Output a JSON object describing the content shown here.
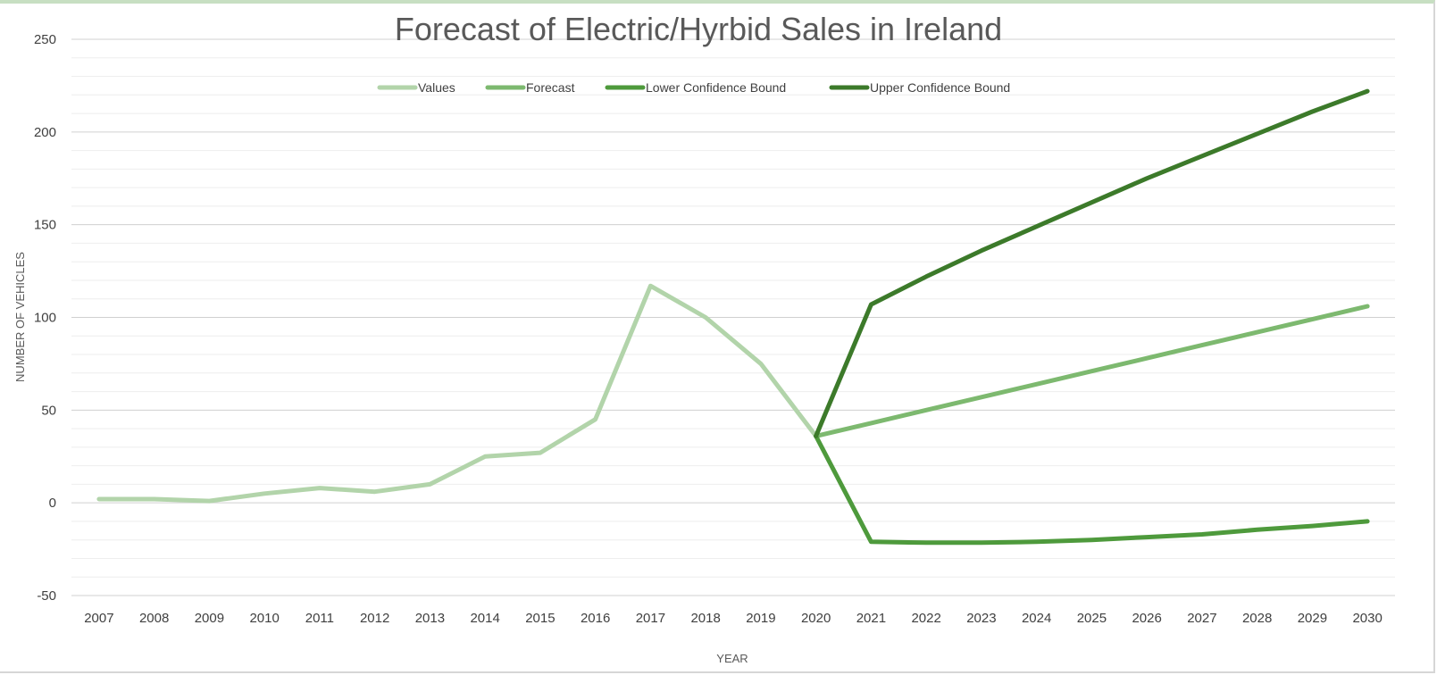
{
  "chart_data": {
    "type": "line",
    "title": "Forecast of Electric/Hyrbid Sales in Ireland",
    "xlabel": "YEAR",
    "ylabel": "NUMBER OF VEHICLES",
    "ylim": [
      -50,
      250
    ],
    "yticks": [
      -50,
      0,
      50,
      100,
      150,
      200,
      250
    ],
    "grid": true,
    "legend_position": "top",
    "x": [
      2007,
      2008,
      2009,
      2010,
      2011,
      2012,
      2013,
      2014,
      2015,
      2016,
      2017,
      2018,
      2019,
      2020,
      2021,
      2022,
      2023,
      2024,
      2025,
      2026,
      2027,
      2028,
      2029,
      2030
    ],
    "series": [
      {
        "name": "Values",
        "color": "#b2d4aa",
        "x": [
          2007,
          2008,
          2009,
          2010,
          2011,
          2012,
          2013,
          2014,
          2015,
          2016,
          2017,
          2018,
          2019,
          2020
        ],
        "values": [
          2,
          2,
          1,
          5,
          8,
          6,
          10,
          25,
          27,
          45,
          117,
          100,
          75,
          36
        ]
      },
      {
        "name": "Forecast",
        "color": "#7db96f",
        "x": [
          2020,
          2021,
          2022,
          2023,
          2024,
          2025,
          2026,
          2027,
          2028,
          2029,
          2030
        ],
        "values": [
          36,
          43,
          50,
          57,
          64,
          71,
          78,
          85,
          92,
          99,
          106
        ]
      },
      {
        "name": "Lower Confidence Bound",
        "color": "#4e9a3c",
        "x": [
          2020,
          2021,
          2022,
          2023,
          2024,
          2025,
          2026,
          2027,
          2028,
          2029,
          2030
        ],
        "values": [
          36,
          -21,
          -21.5,
          -21.5,
          -21,
          -20,
          -18.5,
          -17,
          -14.5,
          -12.5,
          -10
        ]
      },
      {
        "name": "Upper Confidence Bound",
        "color": "#3c7a2a",
        "x": [
          2020,
          2021,
          2022,
          2023,
          2024,
          2025,
          2026,
          2027,
          2028,
          2029,
          2030
        ],
        "values": [
          36,
          107,
          122,
          136,
          149,
          162,
          175,
          187,
          199,
          211,
          222
        ]
      }
    ]
  }
}
